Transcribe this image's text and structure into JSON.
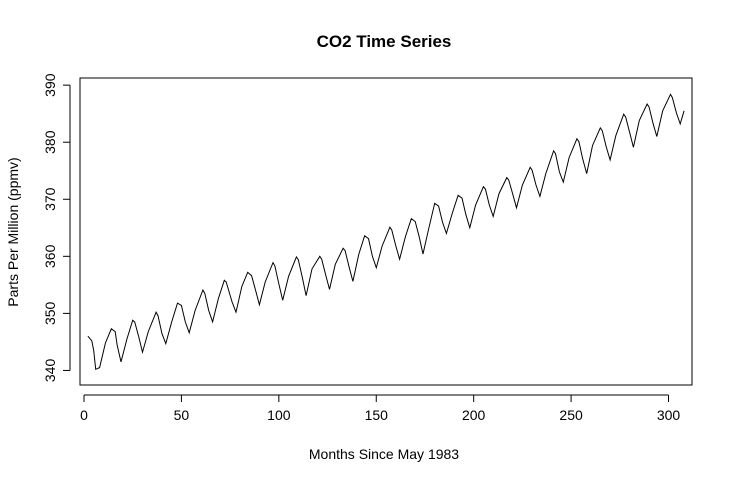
{
  "chart_data": {
    "type": "line",
    "title": "CO2 Time Series",
    "xlabel": "Months Since May 1983",
    "ylabel": "Parts Per Million (ppmv)",
    "xlim": [
      0,
      310
    ],
    "ylim": [
      338.5,
      390.2
    ],
    "xticks": [
      0,
      50,
      100,
      150,
      200,
      250,
      300
    ],
    "yticks": [
      340,
      350,
      360,
      370,
      380,
      390
    ],
    "grid": false,
    "series": [
      {
        "x": [
          2,
          4,
          5,
          6,
          8,
          11,
          14,
          16,
          17,
          19,
          22,
          25,
          26,
          28,
          30,
          33,
          37,
          38,
          40,
          42,
          45,
          48,
          50,
          52,
          54,
          57,
          61,
          62,
          64,
          66,
          69,
          72,
          73,
          76,
          78,
          81,
          84,
          86,
          88,
          90,
          93,
          97,
          98,
          100,
          102,
          105,
          109,
          110,
          112,
          114,
          117,
          121,
          122,
          124,
          126,
          129,
          133,
          134,
          136,
          138,
          141,
          144,
          146,
          148,
          150,
          153,
          157,
          158,
          160,
          162,
          165,
          168,
          170,
          172,
          174,
          177,
          180,
          182,
          184,
          186,
          189,
          192,
          194,
          196,
          198,
          201,
          205,
          206,
          208,
          210,
          213,
          217,
          218,
          220,
          222,
          225,
          229,
          230,
          232,
          234,
          237,
          241,
          242,
          244,
          246,
          249,
          253,
          254,
          256,
          258,
          261,
          265,
          266,
          268,
          270,
          273,
          277,
          278,
          280,
          282,
          285,
          289,
          290,
          292,
          294,
          297,
          301,
          302,
          304,
          306,
          308
        ],
        "y": [
          346.0,
          345.2,
          343.5,
          340.2,
          340.5,
          344.8,
          347.3,
          346.8,
          344.5,
          341.5,
          345.5,
          348.8,
          348.5,
          346.0,
          343.2,
          346.8,
          350.2,
          349.6,
          346.5,
          344.7,
          348.5,
          351.8,
          351.4,
          348.5,
          346.6,
          350.5,
          354.1,
          353.5,
          350.5,
          348.5,
          352.6,
          355.8,
          355.5,
          352.0,
          350.2,
          354.7,
          357.2,
          356.6,
          354.1,
          351.5,
          355.5,
          358.9,
          358.3,
          355.2,
          352.3,
          356.5,
          359.9,
          359.4,
          356.4,
          353.1,
          357.8,
          360.0,
          359.5,
          356.8,
          354.2,
          358.6,
          361.4,
          361.0,
          358.2,
          355.6,
          360.3,
          363.6,
          363.1,
          360.0,
          358.0,
          361.8,
          365.1,
          364.6,
          361.9,
          359.5,
          363.5,
          366.6,
          366.1,
          363.5,
          360.4,
          365.0,
          369.3,
          368.8,
          366.0,
          364.0,
          367.5,
          370.7,
          370.2,
          367.3,
          365.0,
          369.0,
          372.2,
          371.8,
          369.0,
          367.0,
          371.0,
          373.8,
          373.4,
          371.0,
          368.5,
          372.5,
          375.6,
          375.1,
          372.5,
          370.5,
          374.5,
          378.5,
          378.0,
          374.8,
          373.0,
          377.3,
          380.6,
          380.1,
          377.0,
          374.5,
          379.4,
          382.5,
          382.0,
          379.2,
          376.9,
          381.2,
          384.9,
          384.4,
          381.8,
          379.1,
          383.8,
          386.7,
          386.2,
          383.4,
          381.0,
          385.5,
          388.4,
          387.8,
          385.2,
          383.2,
          385.5
        ]
      }
    ]
  }
}
